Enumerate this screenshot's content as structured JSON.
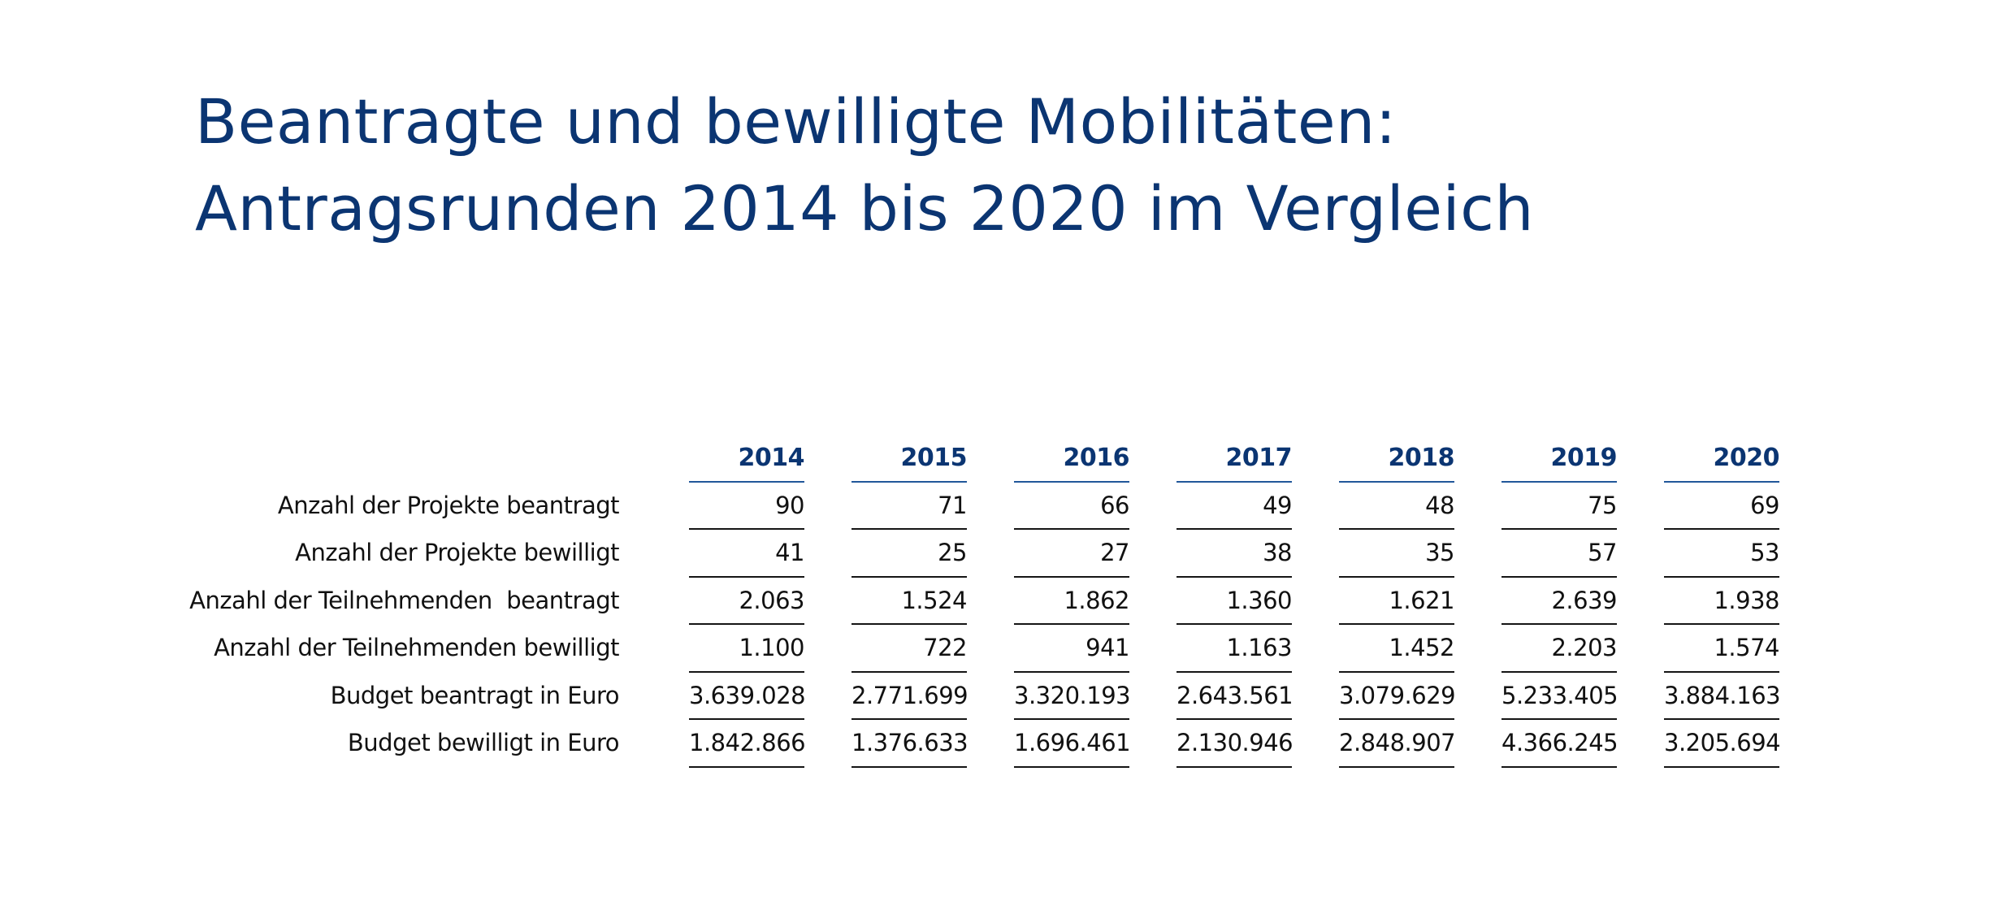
{
  "title": {
    "line1": "Beantragte und bewilligte Mobilitäten:",
    "line2": "Antragsrunden 2014 bis 2020 im Vergleich"
  },
  "colors": {
    "title": "#0b3572",
    "header_rule": "#21579a",
    "row_rule": "#151515"
  },
  "chart_data": {
    "type": "table",
    "columns": [
      "2014",
      "2015",
      "2016",
      "2017",
      "2018",
      "2019",
      "2020"
    ],
    "rows": [
      {
        "label": "Anzahl der Projekte beantragt",
        "values": [
          "90",
          "71",
          "66",
          "49",
          "48",
          "75",
          "69"
        ]
      },
      {
        "label": "Anzahl der Projekte bewilligt",
        "values": [
          "41",
          "25",
          "27",
          "38",
          "35",
          "57",
          "53"
        ]
      },
      {
        "label": "Anzahl der Teilnehmenden  beantragt",
        "values": [
          "2.063",
          "1.524",
          "1.862",
          "1.360",
          "1.621",
          "2.639",
          "1.938"
        ]
      },
      {
        "label": "Anzahl der Teilnehmenden bewilligt",
        "values": [
          "1.100",
          "722",
          "941",
          "1.163",
          "1.452",
          "2.203",
          "1.574"
        ]
      },
      {
        "label": "Budget beantragt in Euro",
        "values": [
          "3.639.028",
          "2.771.699",
          "3.320.193",
          "2.643.561",
          "3.079.629",
          "5.233.405",
          "3.884.163"
        ]
      },
      {
        "label": "Budget bewilligt in Euro",
        "values": [
          "1.842.866",
          "1.376.633",
          "1.696.461",
          "2.130.946",
          "2.848.907",
          "4.366.245",
          "3.205.694"
        ]
      }
    ]
  }
}
